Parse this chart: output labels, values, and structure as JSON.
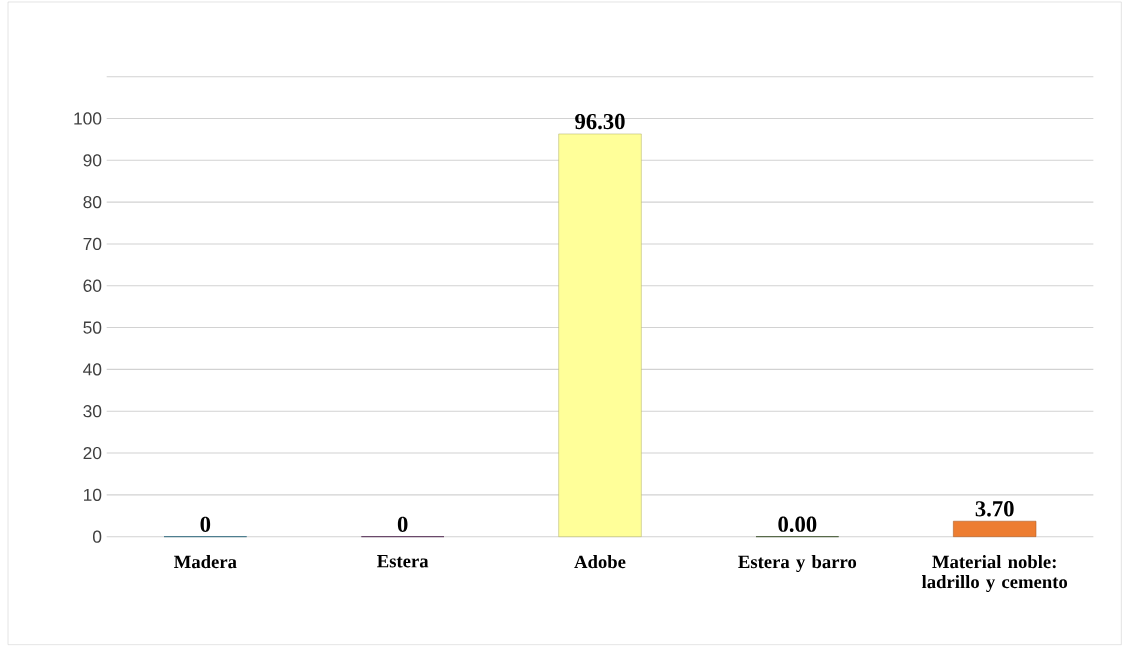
{
  "chart_data": {
    "type": "bar",
    "categories": [
      "Madera",
      "Estera",
      "Adobe",
      "Estera y barro",
      "Material noble: ladrillo y cemento"
    ],
    "values": [
      0,
      0,
      96.3,
      0,
      3.7
    ],
    "colors": [
      "#17799b",
      "#4d0a4f",
      "#ffff99",
      "#2b4f0e",
      "#ed7d31"
    ],
    "value_labels": [
      "0",
      "0",
      "96.30",
      "0.00",
      "3.70"
    ],
    "ylim": [
      0,
      110
    ],
    "yticks": [
      0,
      10,
      20,
      30,
      40,
      50,
      60,
      70,
      80,
      90,
      100,
      {
        "value": 110,
        "label": null
      }
    ],
    "grid": "y"
  }
}
